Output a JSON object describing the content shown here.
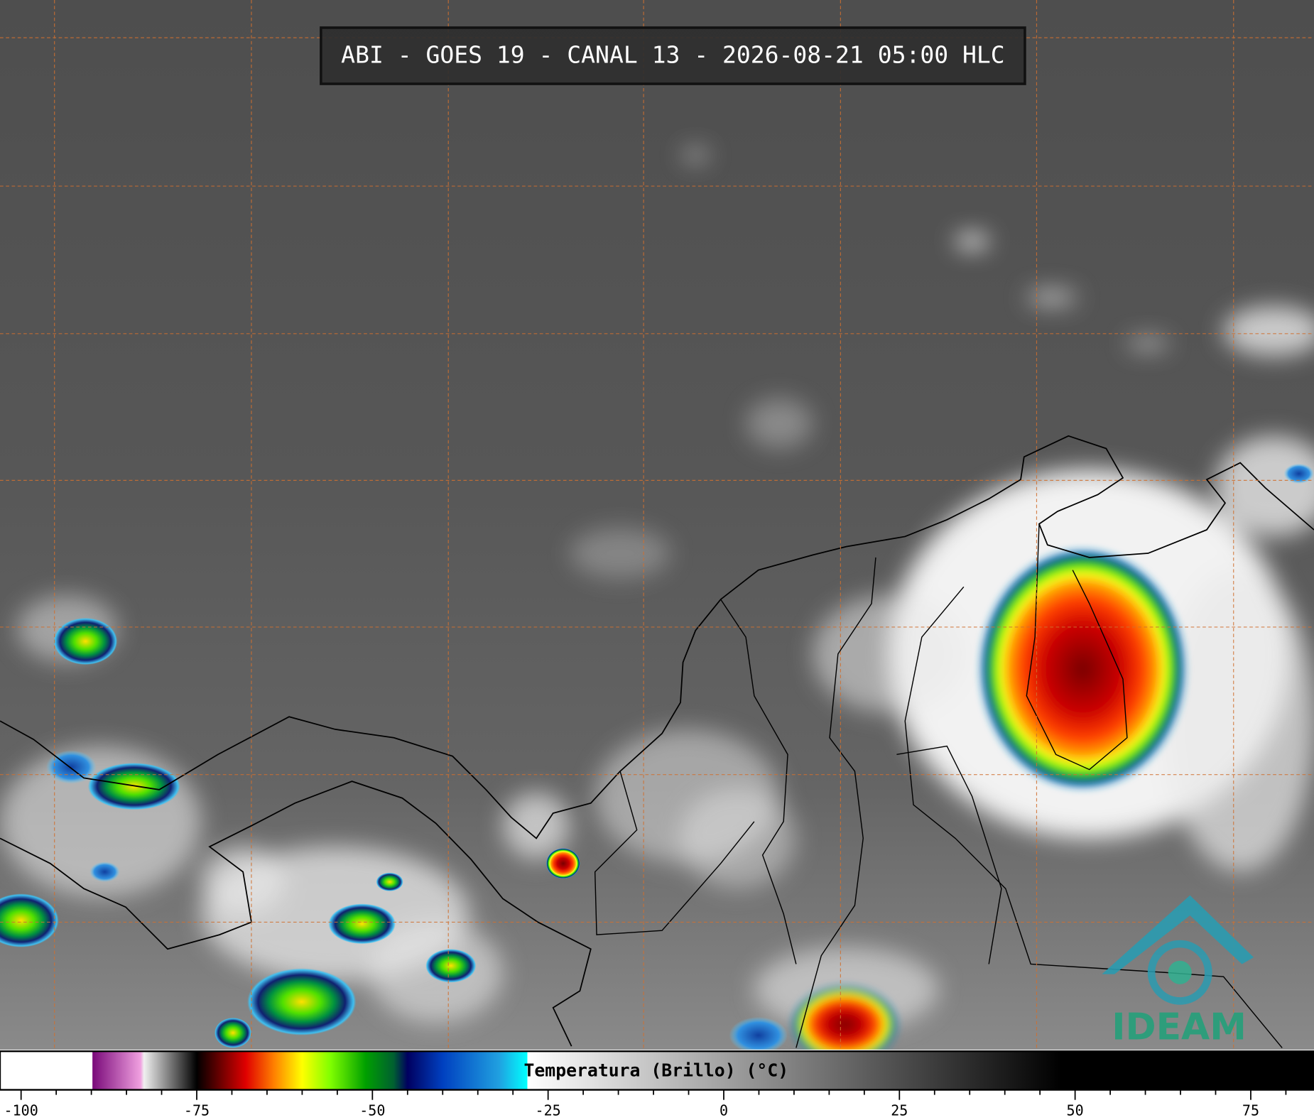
{
  "header": {
    "title": "ABI - GOES 19 - CANAL 13 - 2026-08-21 05:00 HLC"
  },
  "colorbar": {
    "label": "Temperatura (Brillo) (°C)",
    "lim": [
      -103,
      84
    ],
    "ticks": [
      -100,
      -75,
      -50,
      -25,
      0,
      25,
      50,
      75
    ],
    "minor_ticks": [
      -95,
      -90,
      -85,
      -80,
      -70,
      -65,
      -60,
      -55,
      -45,
      -40,
      -35,
      -30,
      -20,
      -15,
      -10,
      -5,
      5,
      10,
      15,
      20,
      30,
      35,
      40,
      45,
      55,
      60,
      65,
      70,
      80
    ],
    "stops": [
      {
        "value": -103,
        "color": "#ffffff"
      },
      {
        "value": -89.9,
        "color": "#ffffff"
      },
      {
        "value": -89.8,
        "color": "#7a0a7a"
      },
      {
        "value": -83,
        "color": "#f0a0e0"
      },
      {
        "value": -82.5,
        "color": "#f0f0f0"
      },
      {
        "value": -77,
        "color": "#404040"
      },
      {
        "value": -75,
        "color": "#000000"
      },
      {
        "value": -72,
        "color": "#600000"
      },
      {
        "value": -68,
        "color": "#e00000"
      },
      {
        "value": -64,
        "color": "#ff8000"
      },
      {
        "value": -60,
        "color": "#ffff00"
      },
      {
        "value": -56,
        "color": "#80ff00"
      },
      {
        "value": -51,
        "color": "#00a000"
      },
      {
        "value": -47,
        "color": "#006030"
      },
      {
        "value": -45,
        "color": "#000060"
      },
      {
        "value": -40,
        "color": "#0040c0"
      },
      {
        "value": -32,
        "color": "#20a0e0"
      },
      {
        "value": -28,
        "color": "#00ffff"
      },
      {
        "value": -27.9,
        "color": "#ffffff"
      },
      {
        "value": 48,
        "color": "#000000"
      },
      {
        "value": 84,
        "color": "#000000"
      }
    ]
  },
  "logo": {
    "text": "IDEAM"
  }
}
